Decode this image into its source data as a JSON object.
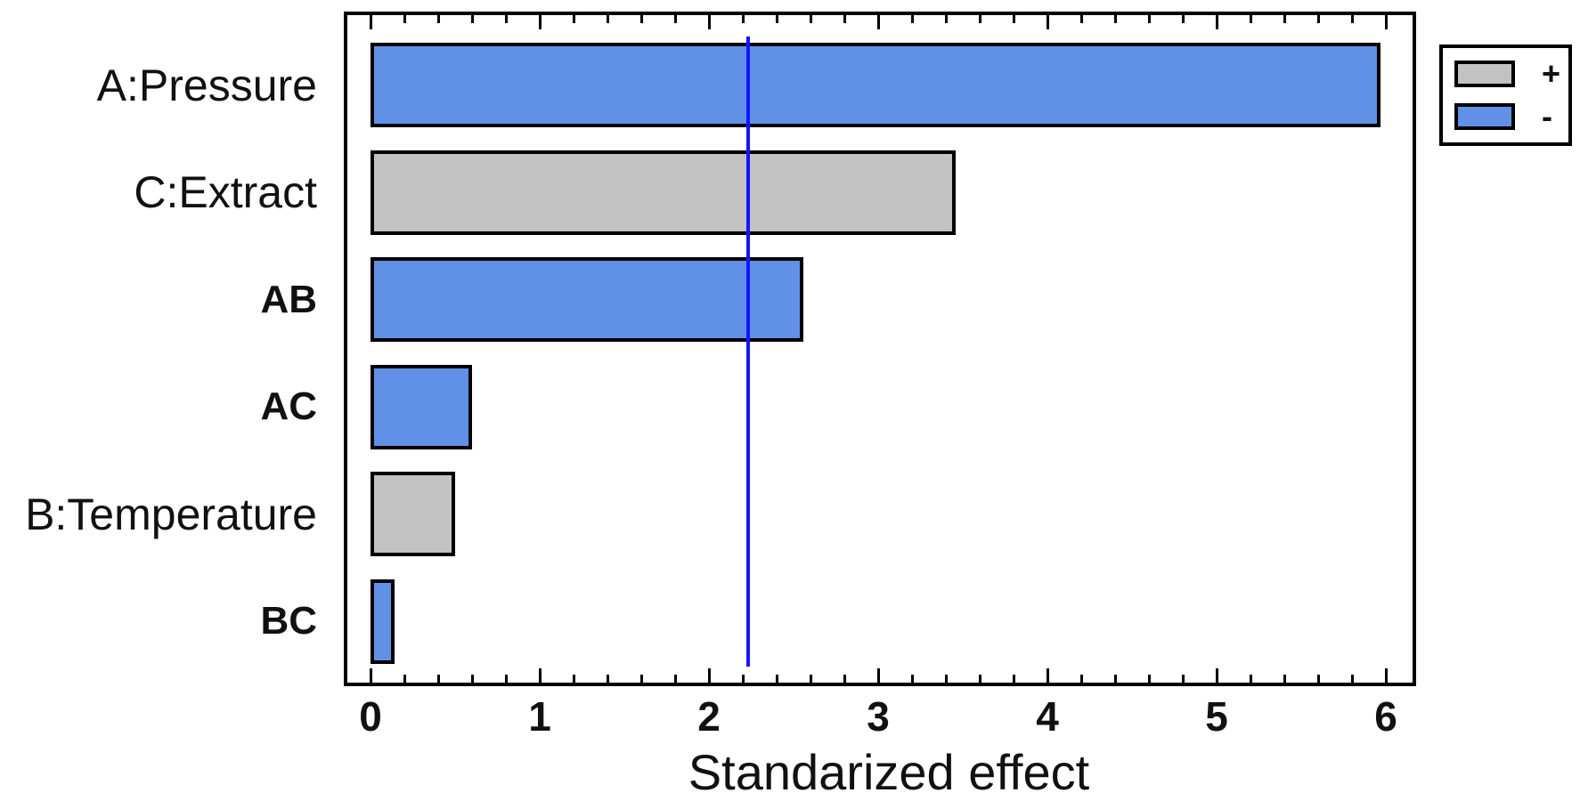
{
  "chart_data": {
    "type": "bar",
    "orientation": "horizontal",
    "title": "",
    "xlabel": "Standarized effect",
    "ylabel": "",
    "categories": [
      "A:Pressure",
      "C:Extract",
      "AB",
      "AC",
      "B:Temperature",
      "BC"
    ],
    "values": [
      5.97,
      3.46,
      2.56,
      0.6,
      0.5,
      0.14
    ],
    "signs": [
      "-",
      "+",
      "-",
      "-",
      "+",
      "-"
    ],
    "bold_labels": [
      false,
      false,
      true,
      true,
      false,
      true
    ],
    "xticks": [
      0,
      1,
      2,
      3,
      4,
      5,
      6
    ],
    "minor_tick_step": 0.2,
    "xlim": [
      0,
      6.3
    ],
    "grid": false,
    "reference_line": {
      "value": 2.23,
      "color": "#1414FF"
    },
    "colors": {
      "plus": "#C2C2C2",
      "minus": "#6191E6",
      "bar_border": "#000000",
      "axis": "#000000"
    },
    "legend": {
      "position": "top-right",
      "items": [
        {
          "symbol": "+",
          "sign": "plus"
        },
        {
          "symbol": "-",
          "sign": "minus"
        }
      ]
    }
  }
}
